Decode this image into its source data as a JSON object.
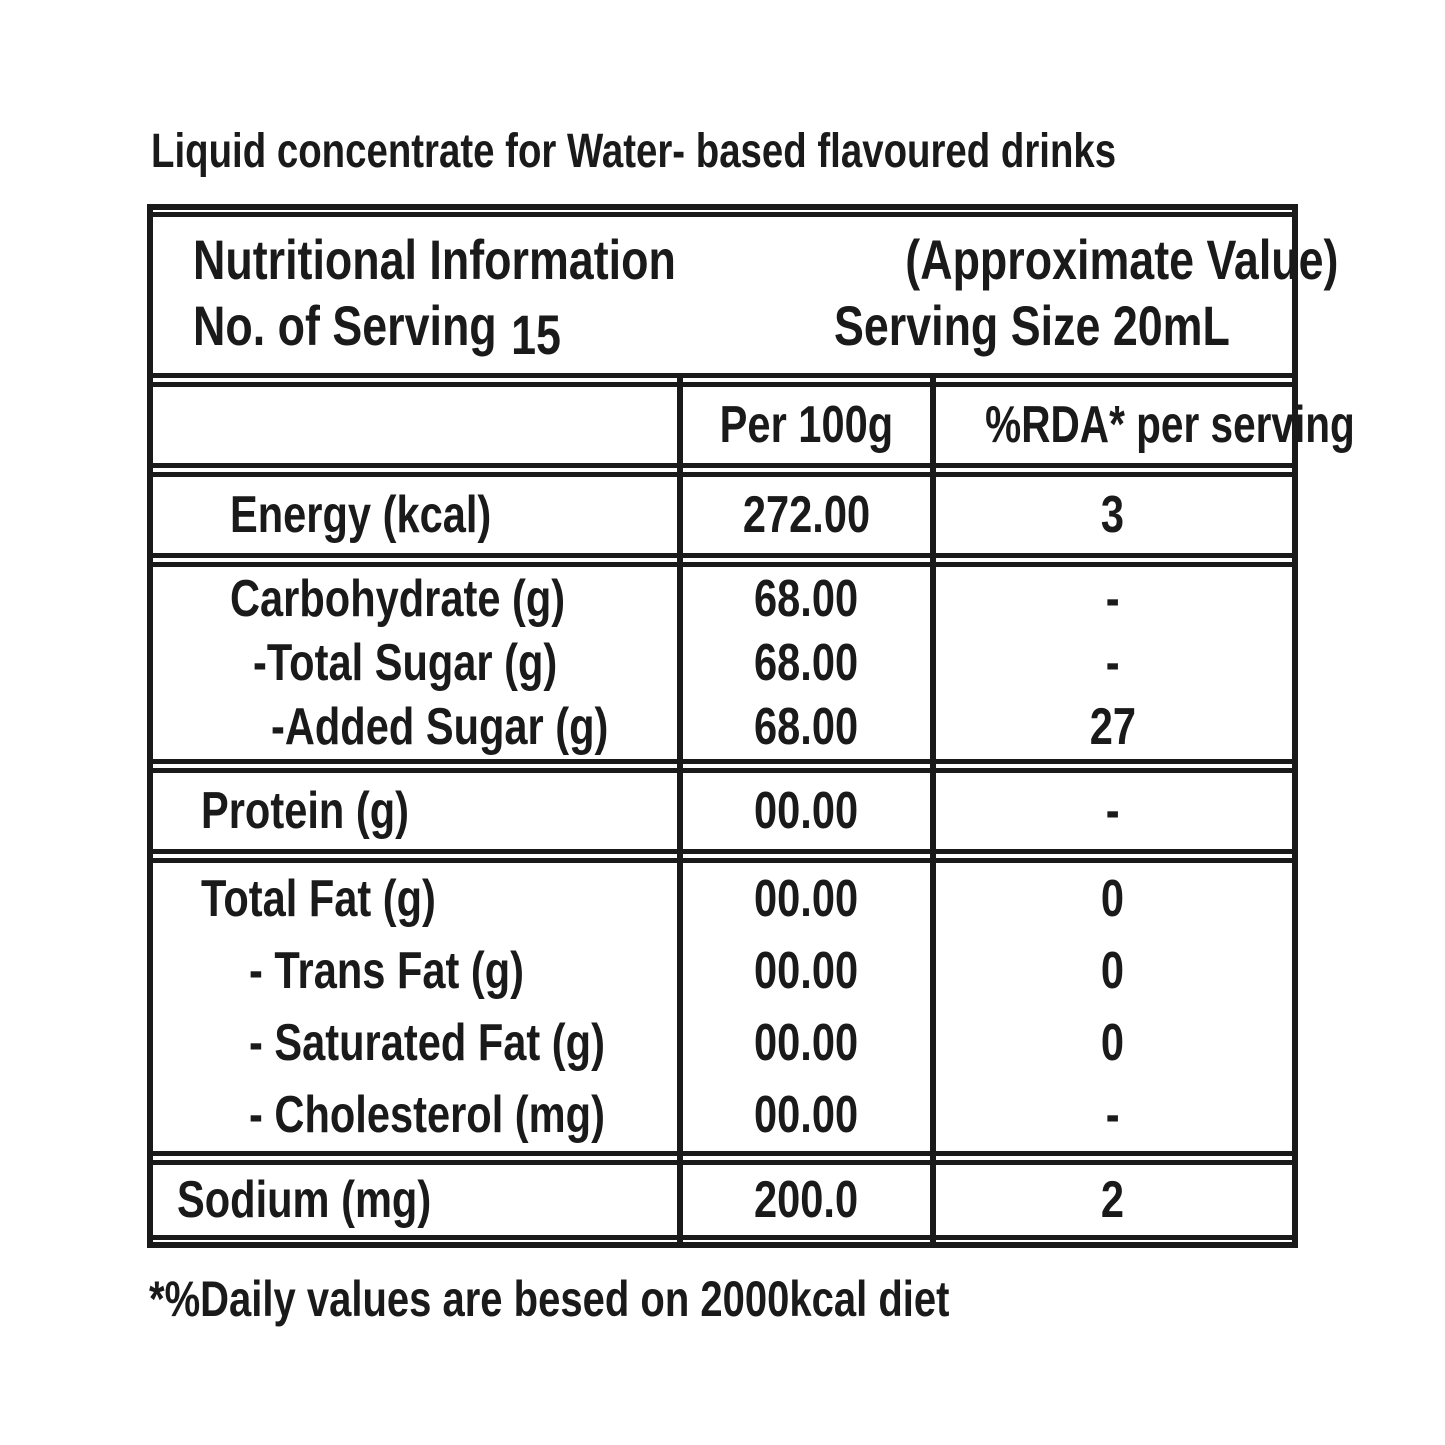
{
  "colors": {
    "ink": "#1a1a1a",
    "background": "#ffffff"
  },
  "page": {
    "title": "Liquid concentrate for Water- based flavoured drinks",
    "footnote": "*%Daily values are besed on 2000kcal diet"
  },
  "table": {
    "header": {
      "title": "Nutritional Information",
      "approx": "(Approximate Value)",
      "servings_label": "No. of Serving",
      "servings_count": "15",
      "serving_size": "Serving Size 20mL"
    },
    "col_headers": {
      "item": "",
      "per_100g": "Per 100g",
      "rda": "%RDA* per serving"
    },
    "sections": [
      {
        "rows": [
          {
            "label": "Energy (kcal)",
            "per100g": "272.00",
            "rda": "3"
          }
        ]
      },
      {
        "rows": [
          {
            "label": "Carbohydrate (g)",
            "per100g": "68.00",
            "rda": "-"
          },
          {
            "label": "-Total Sugar (g)",
            "per100g": "68.00",
            "rda": "-"
          },
          {
            "label": "-Added Sugar (g)",
            "per100g": "68.00",
            "rda": "27"
          }
        ]
      },
      {
        "rows": [
          {
            "label": "Protein (g)",
            "per100g": "00.00",
            "rda": "-"
          }
        ]
      },
      {
        "rows": [
          {
            "label": "Total Fat (g)",
            "per100g": "00.00",
            "rda": "0"
          },
          {
            "label": "- Trans Fat (g)",
            "per100g": "00.00",
            "rda": "0"
          },
          {
            "label": "- Saturated Fat (g)",
            "per100g": "00.00",
            "rda": "0"
          },
          {
            "label": "- Cholesterol (mg)",
            "per100g": "00.00",
            "rda": "-"
          }
        ]
      },
      {
        "rows": [
          {
            "label": "Sodium (mg)",
            "per100g": "200.0",
            "rda": "2"
          }
        ]
      }
    ]
  }
}
